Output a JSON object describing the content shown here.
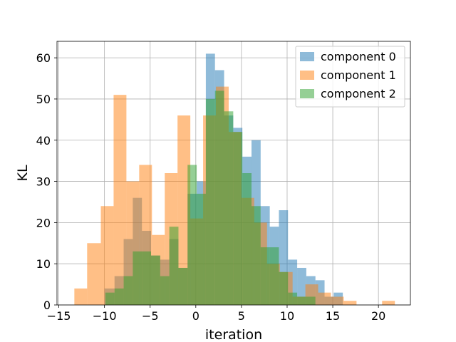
{
  "chart_data": {
    "type": "histogram",
    "xlabel": "iteration",
    "ylabel": "KL",
    "xlim": [
      -15.2,
      23.5
    ],
    "ylim": [
      0,
      64
    ],
    "xticks": [
      -15,
      -10,
      -5,
      0,
      5,
      10,
      15,
      20
    ],
    "xtick_labels": [
      "−15",
      "−10",
      "−5",
      "0",
      "5",
      "10",
      "15",
      "20"
    ],
    "yticks": [
      0,
      10,
      20,
      30,
      40,
      50,
      60
    ],
    "ytick_labels": [
      "0",
      "10",
      "20",
      "30",
      "40",
      "50",
      "60"
    ],
    "grid": true,
    "legend_position": "top-right",
    "series": [
      {
        "name": "component 0",
        "color": "#1f77b4",
        "alpha": 0.5,
        "bins": [
          [
            -10.0,
            -8.9,
            4
          ],
          [
            -8.9,
            -7.9,
            7
          ],
          [
            -7.9,
            -6.9,
            16
          ],
          [
            -6.9,
            -5.9,
            26
          ],
          [
            -5.9,
            -4.9,
            18
          ],
          [
            -4.9,
            -3.9,
            12
          ],
          [
            -3.9,
            -2.9,
            11
          ],
          [
            -2.9,
            -1.9,
            16
          ],
          [
            -1.9,
            -0.9,
            9
          ],
          [
            -0.9,
            0.1,
            27
          ],
          [
            0.1,
            1.1,
            30
          ],
          [
            1.1,
            2.1,
            61
          ],
          [
            2.1,
            3.1,
            57
          ],
          [
            3.1,
            4.1,
            46
          ],
          [
            4.1,
            5.1,
            43
          ],
          [
            5.1,
            6.1,
            36
          ],
          [
            6.1,
            7.1,
            40
          ],
          [
            7.1,
            8.1,
            24
          ],
          [
            8.1,
            9.1,
            19
          ],
          [
            9.1,
            10.1,
            23
          ],
          [
            10.1,
            11.1,
            11
          ],
          [
            11.1,
            12.1,
            9
          ],
          [
            12.1,
            13.1,
            7
          ],
          [
            13.1,
            14.1,
            6
          ],
          [
            14.1,
            15.1,
            2
          ],
          [
            15.1,
            16.1,
            3
          ]
        ]
      },
      {
        "name": "component 1",
        "color": "#ff7f0e",
        "alpha": 0.5,
        "bins": [
          [
            -13.3,
            -11.9,
            4
          ],
          [
            -11.9,
            -10.4,
            15
          ],
          [
            -10.4,
            -9.0,
            24
          ],
          [
            -9.0,
            -7.6,
            51
          ],
          [
            -7.6,
            -6.2,
            30
          ],
          [
            -6.2,
            -4.8,
            34
          ],
          [
            -4.8,
            -3.4,
            17
          ],
          [
            -3.4,
            -2.0,
            32
          ],
          [
            -2.0,
            -0.6,
            46
          ],
          [
            -0.6,
            0.8,
            21
          ],
          [
            0.8,
            2.2,
            46
          ],
          [
            2.2,
            3.6,
            53
          ],
          [
            3.6,
            5.0,
            42
          ],
          [
            5.0,
            6.4,
            26
          ],
          [
            6.4,
            7.8,
            20
          ],
          [
            7.8,
            9.2,
            10
          ],
          [
            9.2,
            10.6,
            8
          ],
          [
            10.6,
            12.0,
            2
          ],
          [
            12.0,
            13.4,
            5
          ],
          [
            13.4,
            14.8,
            3
          ],
          [
            14.8,
            16.2,
            2
          ],
          [
            16.2,
            17.6,
            1
          ],
          [
            17.6,
            19.0,
            0
          ],
          [
            19.0,
            20.4,
            0
          ],
          [
            20.4,
            21.8,
            1
          ]
        ]
      },
      {
        "name": "component 2",
        "color": "#2ca02c",
        "alpha": 0.5,
        "bins": [
          [
            -9.9,
            -8.9,
            3
          ],
          [
            -8.9,
            -7.9,
            4
          ],
          [
            -7.9,
            -6.9,
            7
          ],
          [
            -6.9,
            -5.9,
            13
          ],
          [
            -5.9,
            -4.9,
            13
          ],
          [
            -4.9,
            -3.9,
            12
          ],
          [
            -3.9,
            -2.9,
            7
          ],
          [
            -2.9,
            -1.9,
            19
          ],
          [
            -1.9,
            -0.9,
            9
          ],
          [
            -0.9,
            0.1,
            34
          ],
          [
            0.1,
            1.1,
            27
          ],
          [
            1.1,
            2.1,
            50
          ],
          [
            2.1,
            3.1,
            52
          ],
          [
            3.1,
            4.1,
            47
          ],
          [
            4.1,
            5.1,
            42
          ],
          [
            5.1,
            6.1,
            32
          ],
          [
            6.1,
            7.1,
            24
          ],
          [
            7.1,
            8.1,
            14
          ],
          [
            8.1,
            9.1,
            14
          ],
          [
            9.1,
            10.1,
            8
          ],
          [
            10.1,
            11.1,
            3
          ],
          [
            11.1,
            12.1,
            2
          ],
          [
            12.1,
            13.1,
            2
          ]
        ]
      }
    ]
  }
}
